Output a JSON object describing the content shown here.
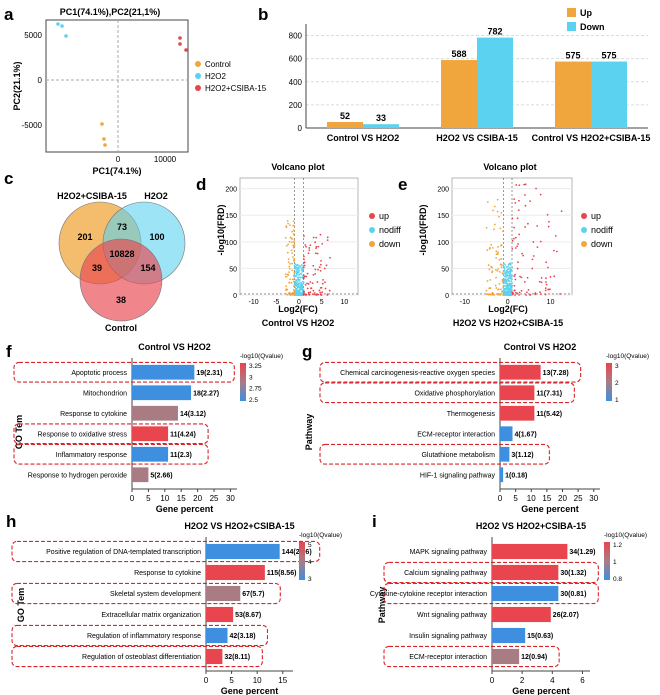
{
  "figure": {
    "colors": {
      "orange": "#F0A63C",
      "cyan": "#5BD2F0",
      "red": "#E8454E",
      "mauve": "#A97C84",
      "blue": "#3E8FE0",
      "dashbox": "#D8262A",
      "grid": "#DCDCDC"
    }
  },
  "panels": {
    "a": {
      "label": "a",
      "title": "PC1(74.1%),PC2(21,1%)",
      "xlabel": "PC1(74.1%)",
      "ylabel": "PC2(21.1%)",
      "xticks": [
        "0",
        "10000"
      ],
      "yticks": [
        "5000",
        "0",
        "-5000"
      ],
      "legend": [
        "Control",
        "H2O2",
        "H2O2+CSIBA-15"
      ]
    },
    "b": {
      "label": "b",
      "legend": [
        "Up",
        "Down"
      ]
    },
    "c": {
      "label": "c",
      "set_labels": [
        "H2O2+CSIBA-15",
        "H2O2",
        "Control"
      ],
      "regions": {
        "only_a": "201",
        "only_b": "100",
        "only_c": "38",
        "ab": "73",
        "ac": "39",
        "bc": "154",
        "abc": "10828"
      }
    },
    "d": {
      "label": "d",
      "title": "Volcano plot",
      "xlabel": "Log2(FC)",
      "ylabel": "-log10(FRD)",
      "caption": "Control VS H2O2",
      "xticks": [
        "-10",
        "-5",
        "0",
        "5",
        "10"
      ],
      "yticks": [
        "0",
        "50",
        "100",
        "150",
        "200"
      ],
      "legend": [
        "up",
        "nodiff",
        "down"
      ]
    },
    "e": {
      "label": "e",
      "title": "Volcano plot",
      "xlabel": "Log2(FC)",
      "ylabel": "-log10(FRD)",
      "caption": "H2O2 VS H2O2+CSIBA-15",
      "xticks": [
        "-10",
        "0",
        "10"
      ],
      "yticks": [
        "0",
        "50",
        "100",
        "150",
        "200"
      ],
      "legend": [
        "up",
        "nodiff",
        "down"
      ]
    },
    "f": {
      "label": "f",
      "ylabel": "GO Tem",
      "legend_title": "-log10(Qvalue)",
      "legend_ticks": [
        "3.25",
        "3",
        "2.75",
        "2.5"
      ]
    },
    "g": {
      "label": "g",
      "ylabel": "Pathway",
      "legend_title": "-log10(Qvalue)",
      "legend_ticks": [
        "3",
        "2",
        "1"
      ]
    },
    "h": {
      "label": "h",
      "ylabel": "GO Tem",
      "legend_title": "-log10(Qvalue)",
      "legend_ticks": [
        "5",
        "4",
        "3"
      ]
    },
    "i": {
      "label": "i",
      "ylabel": "Pathway",
      "legend_title": "-log10(Qvalue)",
      "legend_ticks": [
        "1.2",
        "1",
        "0.8"
      ]
    }
  },
  "chart_data": [
    {
      "id": "b",
      "type": "bar",
      "categories": [
        "Control VS H2O2",
        "H2O2 VS CSIBA-15",
        "Control VS H2O2+CSIBA-15"
      ],
      "series": [
        {
          "name": "Up",
          "values": [
            52,
            588,
            575
          ]
        },
        {
          "name": "Down",
          "values": [
            33,
            782,
            575
          ]
        }
      ],
      "data_labels": [
        [
          "52",
          "33"
        ],
        [
          "588",
          "782"
        ],
        [
          "575",
          "575"
        ]
      ],
      "ylim": [
        0,
        900
      ],
      "yticks": [
        0,
        200,
        400,
        600,
        800
      ]
    },
    {
      "id": "f",
      "type": "bar",
      "title": "Control VS H2O2",
      "xlabel": "Gene percent",
      "xlim": [
        0,
        32
      ],
      "xticks": [
        0,
        5,
        10,
        15,
        20,
        25,
        30
      ],
      "categories": [
        "Apoptotic process",
        "Mitochondrion",
        "Response to cytokine",
        "Response to oxidative stress",
        "Inflammatory response",
        "Response to hydrogen peroxide"
      ],
      "values": [
        19,
        18,
        14,
        11,
        11,
        5
      ],
      "labels": [
        "19(2.31)",
        "18(2.27)",
        "14(3.12)",
        "11(4.24)",
        "11(2.3)",
        "5(2.66)"
      ],
      "qvalue": [
        2.31,
        2.27,
        3.12,
        4.24,
        2.3,
        2.66
      ],
      "highlighted": [
        true,
        false,
        false,
        true,
        true,
        false
      ]
    },
    {
      "id": "g",
      "type": "bar",
      "title": "Control VS H2O2",
      "xlabel": "Gene percent",
      "xlim": [
        0,
        32
      ],
      "xticks": [
        0,
        5,
        10,
        15,
        20,
        25,
        30
      ],
      "categories": [
        "Chemical carcinogenesis-reactive oxygen species",
        "Oxidative phosphorylation",
        "Thermogenesis",
        "ECM-receptor interaction",
        "Glutathione metabolism",
        "HIF-1 signaling pathway"
      ],
      "values": [
        13,
        11,
        11,
        4,
        3,
        1
      ],
      "labels": [
        "13(7.28)",
        "11(7.31)",
        "11(5.42)",
        "4(1.67)",
        "3(1.12)",
        "1(0.18)"
      ],
      "qvalue": [
        7.28,
        7.31,
        5.42,
        1.67,
        1.12,
        0.18
      ],
      "highlighted": [
        true,
        true,
        false,
        false,
        true,
        false
      ]
    },
    {
      "id": "h",
      "type": "bar",
      "title": "H2O2 VS H2O2+CSIBA-15",
      "xlabel": "Gene percent",
      "xlim": [
        0,
        17
      ],
      "xticks": [
        0,
        5,
        10,
        15
      ],
      "categories": [
        "Positive regulation of DNA-templated transcription",
        "Response to cytokine",
        "Skeletal system development",
        "Extracellular matrix organization",
        "Regulation of inflammatory response",
        "Regulation of osteoblast differentiation"
      ],
      "values": [
        14.4,
        11.5,
        6.7,
        5.3,
        4.2,
        3.2
      ],
      "labels": [
        "144(2.96)",
        "115(8.56)",
        "67(5.7)",
        "53(8.67)",
        "42(3.18)",
        "32(8.11)"
      ],
      "qvalue": [
        2.96,
        8.56,
        5.7,
        8.67,
        3.18,
        8.11
      ],
      "highlighted": [
        true,
        false,
        true,
        false,
        true,
        true
      ]
    },
    {
      "id": "i",
      "type": "bar",
      "title": "H2O2 VS H2O2+CSIBA-15",
      "xlabel": "Gene percent",
      "xlim": [
        0,
        6.5
      ],
      "xticks": [
        0,
        2,
        4,
        6
      ],
      "categories": [
        "MAPK signaling pathway",
        "Calcium signaling pathway",
        "Cytokine-cytokine receptor interaction",
        "Wnt signaling pathway",
        "Insulin signaling pathway",
        "ECM-receptor interaction"
      ],
      "values": [
        5.0,
        4.4,
        4.4,
        3.9,
        2.2,
        1.8
      ],
      "labels": [
        "34(1.29)",
        "30(1.32)",
        "30(0.81)",
        "26(2.07)",
        "15(0.63)",
        "12(0.94)"
      ],
      "qvalue": [
        1.29,
        1.32,
        0.81,
        2.07,
        0.63,
        0.94
      ],
      "highlighted": [
        false,
        true,
        true,
        false,
        false,
        true
      ]
    }
  ]
}
